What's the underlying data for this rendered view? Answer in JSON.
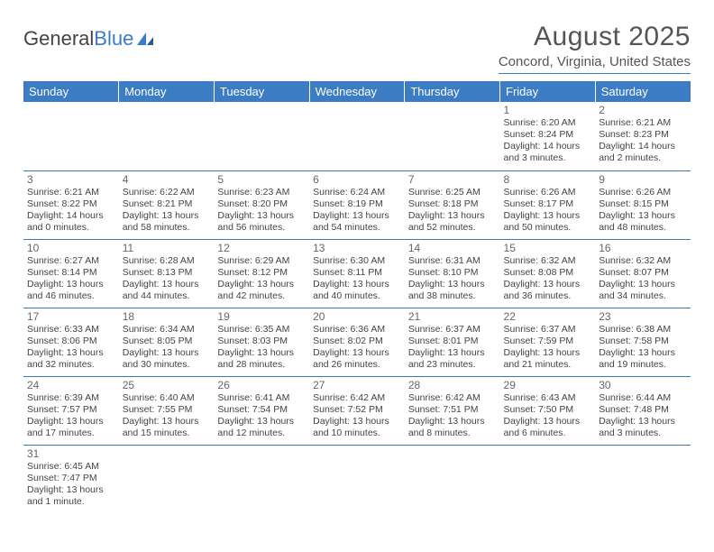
{
  "logo": {
    "part1": "General",
    "part2": "Blue"
  },
  "title": "August 2025",
  "location": "Concord, Virginia, United States",
  "colors": {
    "header_bg": "#3b7cc4",
    "header_text": "#ffffff",
    "border": "#3b7cc4",
    "text": "#444444",
    "daynum": "#666666",
    "page_bg": "#ffffff"
  },
  "weekdays": [
    "Sunday",
    "Monday",
    "Tuesday",
    "Wednesday",
    "Thursday",
    "Friday",
    "Saturday"
  ],
  "weeks": [
    [
      null,
      null,
      null,
      null,
      null,
      {
        "day": "1",
        "sunrise": "Sunrise: 6:20 AM",
        "sunset": "Sunset: 8:24 PM",
        "daylight1": "Daylight: 14 hours",
        "daylight2": "and 3 minutes."
      },
      {
        "day": "2",
        "sunrise": "Sunrise: 6:21 AM",
        "sunset": "Sunset: 8:23 PM",
        "daylight1": "Daylight: 14 hours",
        "daylight2": "and 2 minutes."
      }
    ],
    [
      {
        "day": "3",
        "sunrise": "Sunrise: 6:21 AM",
        "sunset": "Sunset: 8:22 PM",
        "daylight1": "Daylight: 14 hours",
        "daylight2": "and 0 minutes."
      },
      {
        "day": "4",
        "sunrise": "Sunrise: 6:22 AM",
        "sunset": "Sunset: 8:21 PM",
        "daylight1": "Daylight: 13 hours",
        "daylight2": "and 58 minutes."
      },
      {
        "day": "5",
        "sunrise": "Sunrise: 6:23 AM",
        "sunset": "Sunset: 8:20 PM",
        "daylight1": "Daylight: 13 hours",
        "daylight2": "and 56 minutes."
      },
      {
        "day": "6",
        "sunrise": "Sunrise: 6:24 AM",
        "sunset": "Sunset: 8:19 PM",
        "daylight1": "Daylight: 13 hours",
        "daylight2": "and 54 minutes."
      },
      {
        "day": "7",
        "sunrise": "Sunrise: 6:25 AM",
        "sunset": "Sunset: 8:18 PM",
        "daylight1": "Daylight: 13 hours",
        "daylight2": "and 52 minutes."
      },
      {
        "day": "8",
        "sunrise": "Sunrise: 6:26 AM",
        "sunset": "Sunset: 8:17 PM",
        "daylight1": "Daylight: 13 hours",
        "daylight2": "and 50 minutes."
      },
      {
        "day": "9",
        "sunrise": "Sunrise: 6:26 AM",
        "sunset": "Sunset: 8:15 PM",
        "daylight1": "Daylight: 13 hours",
        "daylight2": "and 48 minutes."
      }
    ],
    [
      {
        "day": "10",
        "sunrise": "Sunrise: 6:27 AM",
        "sunset": "Sunset: 8:14 PM",
        "daylight1": "Daylight: 13 hours",
        "daylight2": "and 46 minutes."
      },
      {
        "day": "11",
        "sunrise": "Sunrise: 6:28 AM",
        "sunset": "Sunset: 8:13 PM",
        "daylight1": "Daylight: 13 hours",
        "daylight2": "and 44 minutes."
      },
      {
        "day": "12",
        "sunrise": "Sunrise: 6:29 AM",
        "sunset": "Sunset: 8:12 PM",
        "daylight1": "Daylight: 13 hours",
        "daylight2": "and 42 minutes."
      },
      {
        "day": "13",
        "sunrise": "Sunrise: 6:30 AM",
        "sunset": "Sunset: 8:11 PM",
        "daylight1": "Daylight: 13 hours",
        "daylight2": "and 40 minutes."
      },
      {
        "day": "14",
        "sunrise": "Sunrise: 6:31 AM",
        "sunset": "Sunset: 8:10 PM",
        "daylight1": "Daylight: 13 hours",
        "daylight2": "and 38 minutes."
      },
      {
        "day": "15",
        "sunrise": "Sunrise: 6:32 AM",
        "sunset": "Sunset: 8:08 PM",
        "daylight1": "Daylight: 13 hours",
        "daylight2": "and 36 minutes."
      },
      {
        "day": "16",
        "sunrise": "Sunrise: 6:32 AM",
        "sunset": "Sunset: 8:07 PM",
        "daylight1": "Daylight: 13 hours",
        "daylight2": "and 34 minutes."
      }
    ],
    [
      {
        "day": "17",
        "sunrise": "Sunrise: 6:33 AM",
        "sunset": "Sunset: 8:06 PM",
        "daylight1": "Daylight: 13 hours",
        "daylight2": "and 32 minutes."
      },
      {
        "day": "18",
        "sunrise": "Sunrise: 6:34 AM",
        "sunset": "Sunset: 8:05 PM",
        "daylight1": "Daylight: 13 hours",
        "daylight2": "and 30 minutes."
      },
      {
        "day": "19",
        "sunrise": "Sunrise: 6:35 AM",
        "sunset": "Sunset: 8:03 PM",
        "daylight1": "Daylight: 13 hours",
        "daylight2": "and 28 minutes."
      },
      {
        "day": "20",
        "sunrise": "Sunrise: 6:36 AM",
        "sunset": "Sunset: 8:02 PM",
        "daylight1": "Daylight: 13 hours",
        "daylight2": "and 26 minutes."
      },
      {
        "day": "21",
        "sunrise": "Sunrise: 6:37 AM",
        "sunset": "Sunset: 8:01 PM",
        "daylight1": "Daylight: 13 hours",
        "daylight2": "and 23 minutes."
      },
      {
        "day": "22",
        "sunrise": "Sunrise: 6:37 AM",
        "sunset": "Sunset: 7:59 PM",
        "daylight1": "Daylight: 13 hours",
        "daylight2": "and 21 minutes."
      },
      {
        "day": "23",
        "sunrise": "Sunrise: 6:38 AM",
        "sunset": "Sunset: 7:58 PM",
        "daylight1": "Daylight: 13 hours",
        "daylight2": "and 19 minutes."
      }
    ],
    [
      {
        "day": "24",
        "sunrise": "Sunrise: 6:39 AM",
        "sunset": "Sunset: 7:57 PM",
        "daylight1": "Daylight: 13 hours",
        "daylight2": "and 17 minutes."
      },
      {
        "day": "25",
        "sunrise": "Sunrise: 6:40 AM",
        "sunset": "Sunset: 7:55 PM",
        "daylight1": "Daylight: 13 hours",
        "daylight2": "and 15 minutes."
      },
      {
        "day": "26",
        "sunrise": "Sunrise: 6:41 AM",
        "sunset": "Sunset: 7:54 PM",
        "daylight1": "Daylight: 13 hours",
        "daylight2": "and 12 minutes."
      },
      {
        "day": "27",
        "sunrise": "Sunrise: 6:42 AM",
        "sunset": "Sunset: 7:52 PM",
        "daylight1": "Daylight: 13 hours",
        "daylight2": "and 10 minutes."
      },
      {
        "day": "28",
        "sunrise": "Sunrise: 6:42 AM",
        "sunset": "Sunset: 7:51 PM",
        "daylight1": "Daylight: 13 hours",
        "daylight2": "and 8 minutes."
      },
      {
        "day": "29",
        "sunrise": "Sunrise: 6:43 AM",
        "sunset": "Sunset: 7:50 PM",
        "daylight1": "Daylight: 13 hours",
        "daylight2": "and 6 minutes."
      },
      {
        "day": "30",
        "sunrise": "Sunrise: 6:44 AM",
        "sunset": "Sunset: 7:48 PM",
        "daylight1": "Daylight: 13 hours",
        "daylight2": "and 3 minutes."
      }
    ],
    [
      {
        "day": "31",
        "sunrise": "Sunrise: 6:45 AM",
        "sunset": "Sunset: 7:47 PM",
        "daylight1": "Daylight: 13 hours",
        "daylight2": "and 1 minute."
      },
      null,
      null,
      null,
      null,
      null,
      null
    ]
  ]
}
